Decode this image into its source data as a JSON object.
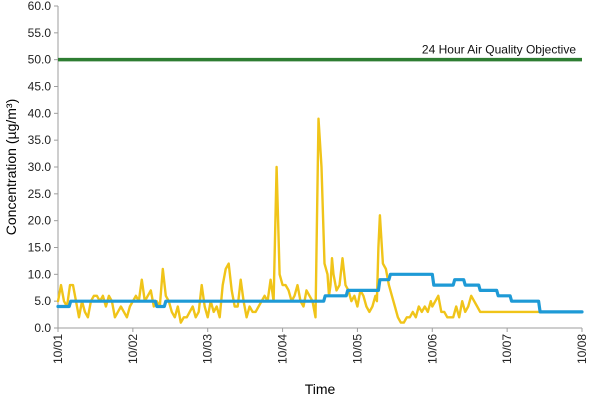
{
  "chart_data": {
    "type": "line",
    "xlabel": "Time",
    "ylabel": "Concentration (µg/m³)",
    "ylim": [
      0,
      60
    ],
    "yticks": [
      0,
      5,
      10,
      15,
      20,
      25,
      30,
      35,
      40,
      45,
      50,
      55,
      60
    ],
    "ytick_labels": [
      "0.0",
      "5.0",
      "10.0",
      "15.0",
      "20.0",
      "25.0",
      "30.0",
      "35.0",
      "40.0",
      "45.0",
      "50.0",
      "55.0",
      "60.0"
    ],
    "xlim": [
      "10/01",
      "10/08"
    ],
    "xticks": [
      "10/01",
      "10/02",
      "10/03",
      "10/04",
      "10/05",
      "10/06",
      "10/07",
      "10/08"
    ],
    "grid": false,
    "legend": "none",
    "annotations": [
      {
        "text": "24 Hour Air Quality Objective",
        "y": 50
      }
    ],
    "series": [
      {
        "kind": "hourly-concentration",
        "color": "#f0c419",
        "x": [
          0,
          0.04,
          0.08,
          0.12,
          0.16,
          0.2,
          0.24,
          0.28,
          0.32,
          0.36,
          0.4,
          0.44,
          0.48,
          0.52,
          0.56,
          0.6,
          0.64,
          0.68,
          0.72,
          0.76,
          0.8,
          0.84,
          0.88,
          0.92,
          0.96,
          1.0,
          1.04,
          1.08,
          1.12,
          1.16,
          1.2,
          1.24,
          1.28,
          1.32,
          1.36,
          1.4,
          1.44,
          1.48,
          1.52,
          1.56,
          1.6,
          1.64,
          1.68,
          1.72,
          1.76,
          1.8,
          1.84,
          1.88,
          1.92,
          1.96,
          2.0,
          2.04,
          2.08,
          2.12,
          2.16,
          2.2,
          2.24,
          2.28,
          2.32,
          2.36,
          2.4,
          2.44,
          2.48,
          2.52,
          2.56,
          2.6,
          2.64,
          2.68,
          2.72,
          2.76,
          2.8,
          2.84,
          2.88,
          2.92,
          2.96,
          3.0,
          3.04,
          3.08,
          3.12,
          3.16,
          3.2,
          3.24,
          3.28,
          3.32,
          3.36,
          3.4,
          3.44,
          3.48,
          3.52,
          3.56,
          3.6,
          3.62,
          3.64,
          3.66,
          3.68,
          3.72,
          3.76,
          3.8,
          3.84,
          3.88,
          3.92,
          3.96,
          4.0,
          4.04,
          4.08,
          4.12,
          4.16,
          4.2,
          4.24,
          4.26,
          4.28,
          4.3,
          4.34,
          4.38,
          4.42,
          4.46,
          4.5,
          4.54,
          4.58,
          4.62,
          4.66,
          4.7,
          4.74,
          4.78,
          4.82,
          4.86,
          4.9,
          4.94,
          4.98,
          5.0,
          5.04,
          5.08,
          5.12,
          5.16,
          5.2,
          5.24,
          5.28,
          5.32,
          5.36,
          5.4,
          5.44,
          5.48,
          5.52,
          5.56,
          5.6,
          5.64,
          5.68,
          5.72,
          5.76,
          5.8,
          5.84,
          5.88,
          5.92,
          5.96,
          6.0,
          6.04,
          6.08,
          6.12,
          6.16,
          6.2,
          6.24,
          6.28,
          6.32,
          6.36,
          6.4,
          6.44,
          6.48,
          6.52,
          6.56,
          6.6,
          6.64,
          6.68,
          6.72,
          6.76,
          6.8,
          6.84,
          6.88,
          6.92,
          6.96,
          7.0
        ],
        "y": [
          5,
          8,
          5,
          4,
          8,
          8,
          5,
          2,
          5,
          3,
          2,
          5,
          6,
          6,
          5,
          6,
          4,
          6,
          5,
          2,
          3,
          4,
          3,
          2,
          4,
          5,
          6,
          5,
          9,
          5,
          6,
          7,
          4,
          5,
          4,
          11,
          6,
          5,
          3,
          2,
          4,
          1,
          2,
          2,
          3,
          4,
          2,
          3,
          8,
          4,
          2,
          5,
          3,
          4,
          2,
          8,
          11,
          12,
          7,
          4,
          4,
          9,
          5,
          2,
          4,
          3,
          3,
          4,
          5,
          6,
          5,
          9,
          5,
          30,
          10,
          8,
          8,
          7,
          5,
          6,
          8,
          5,
          4,
          7,
          6,
          5,
          2,
          39,
          30,
          12,
          10,
          6,
          8,
          13,
          10,
          7,
          8,
          13,
          8,
          7,
          5,
          6,
          4,
          7,
          6,
          4,
          3,
          4,
          6,
          5,
          15,
          21,
          12,
          11,
          8,
          6,
          4,
          2,
          1,
          1,
          2,
          2,
          3,
          2,
          4,
          3,
          4,
          3,
          5,
          4,
          5,
          6,
          3,
          3,
          2,
          2,
          2,
          4,
          2,
          5,
          3,
          4,
          6,
          5,
          4,
          3,
          3,
          3,
          3,
          3,
          3,
          3,
          3,
          3,
          3,
          3,
          3,
          3,
          3,
          3,
          3,
          3,
          3,
          3,
          3,
          3,
          3,
          3,
          3,
          3,
          3,
          3,
          3,
          3,
          3,
          3,
          3,
          3,
          3,
          3
        ]
      },
      {
        "kind": "24-hour-rolling-average",
        "color": "#1e9ad6",
        "x": [
          0.0,
          0.15,
          0.17,
          1.3,
          1.32,
          1.42,
          1.44,
          2.6,
          2.62,
          3.25,
          3.27,
          3.55,
          3.57,
          3.85,
          3.87,
          4.05,
          4.07,
          4.28,
          4.3,
          4.42,
          4.44,
          4.7,
          4.72,
          5.0,
          5.02,
          5.28,
          5.3,
          5.42,
          5.44,
          5.62,
          5.64,
          5.86,
          5.88,
          6.04,
          6.06,
          6.42,
          6.44,
          6.82,
          6.84,
          7.0
        ],
        "y": [
          4,
          4,
          5,
          5,
          4,
          4,
          5,
          5,
          5,
          5,
          5,
          5,
          6,
          6,
          7,
          7,
          7,
          7,
          9,
          9,
          10,
          10,
          10,
          10,
          8,
          8,
          9,
          9,
          8,
          8,
          7,
          7,
          6,
          6,
          5,
          5,
          3,
          3,
          3,
          3
        ]
      }
    ],
    "reference_line": {
      "y": 50,
      "color": "#2e7d32"
    },
    "axis_color": "#9e9e9e"
  }
}
